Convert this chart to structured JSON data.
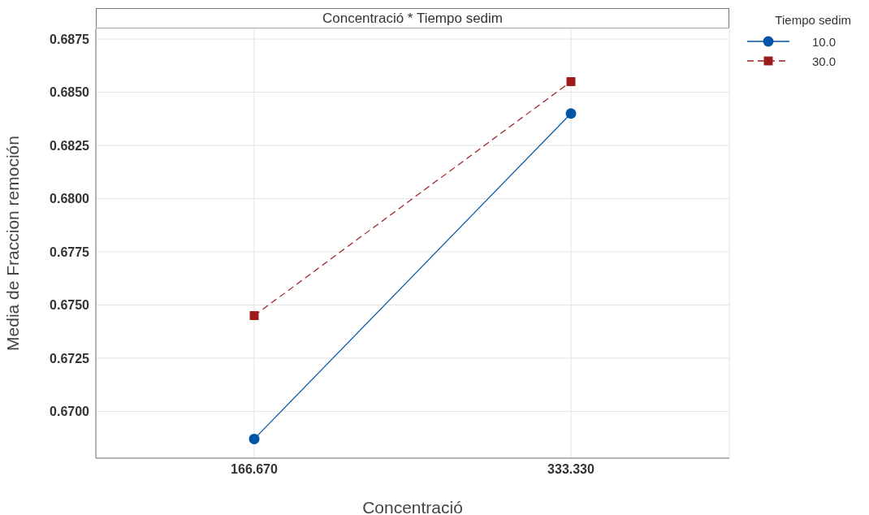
{
  "chart_data": {
    "type": "line",
    "title": "Concentració * Tiempo sedim",
    "xlabel": "Concentració",
    "ylabel": "Media de Fraccion remoción",
    "legend_title": "Tiempo sedim",
    "categories": [
      "166.670",
      "333.330"
    ],
    "series": [
      {
        "name": "10.0",
        "color": "#0054a6",
        "values": [
          0.6687,
          0.684
        ],
        "marker": "circle",
        "line_style": "solid"
      },
      {
        "name": "30.0",
        "color": "#9e1b1b",
        "values": [
          0.6745,
          0.6855
        ],
        "marker": "square",
        "line_style": "dashed"
      }
    ],
    "ylim": [
      0.6678,
      0.688
    ],
    "yticks": [
      {
        "value": 0.67,
        "label": "0.6700"
      },
      {
        "value": 0.6725,
        "label": "0.6725"
      },
      {
        "value": 0.675,
        "label": "0.6750"
      },
      {
        "value": 0.6775,
        "label": "0.6775"
      },
      {
        "value": 0.68,
        "label": "0.6800"
      },
      {
        "value": 0.6825,
        "label": "0.6825"
      },
      {
        "value": 0.685,
        "label": "0.6850"
      },
      {
        "value": 0.6875,
        "label": "0.6875"
      }
    ],
    "grid": true,
    "legend": "top right"
  }
}
